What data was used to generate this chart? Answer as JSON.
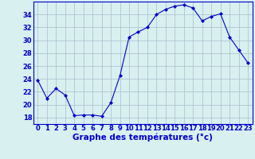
{
  "hours": [
    0,
    1,
    2,
    3,
    4,
    5,
    6,
    7,
    8,
    9,
    10,
    11,
    12,
    13,
    14,
    15,
    16,
    17,
    18,
    19,
    20,
    21,
    22,
    23
  ],
  "temps": [
    23.8,
    21.0,
    22.5,
    21.5,
    18.3,
    18.4,
    18.4,
    18.2,
    20.3,
    24.5,
    30.5,
    31.3,
    32.0,
    34.0,
    34.8,
    35.3,
    35.5,
    35.0,
    33.0,
    33.7,
    34.1,
    30.5,
    28.5,
    26.5
  ],
  "line_color": "#0000cc",
  "marker": "D",
  "marker_size": 2.0,
  "bg_color": "#d8f0f0",
  "grid_color": "#aabbcc",
  "xlabel": "Graphe des températures (°c)",
  "xlabel_color": "#0000cc",
  "xlabel_fontsize": 7.5,
  "tick_color": "#0000cc",
  "tick_fontsize": 6.0,
  "ylim": [
    17,
    36
  ],
  "yticks": [
    18,
    20,
    22,
    24,
    26,
    28,
    30,
    32,
    34
  ],
  "xlim": [
    -0.5,
    23.5
  ],
  "xtick_labels": [
    "0",
    "1",
    "2",
    "3",
    "4",
    "5",
    "6",
    "7",
    "8",
    "9",
    "10",
    "11",
    "12",
    "13",
    "14",
    "15",
    "16",
    "17",
    "18",
    "19",
    "20",
    "21",
    "22",
    "23"
  ]
}
